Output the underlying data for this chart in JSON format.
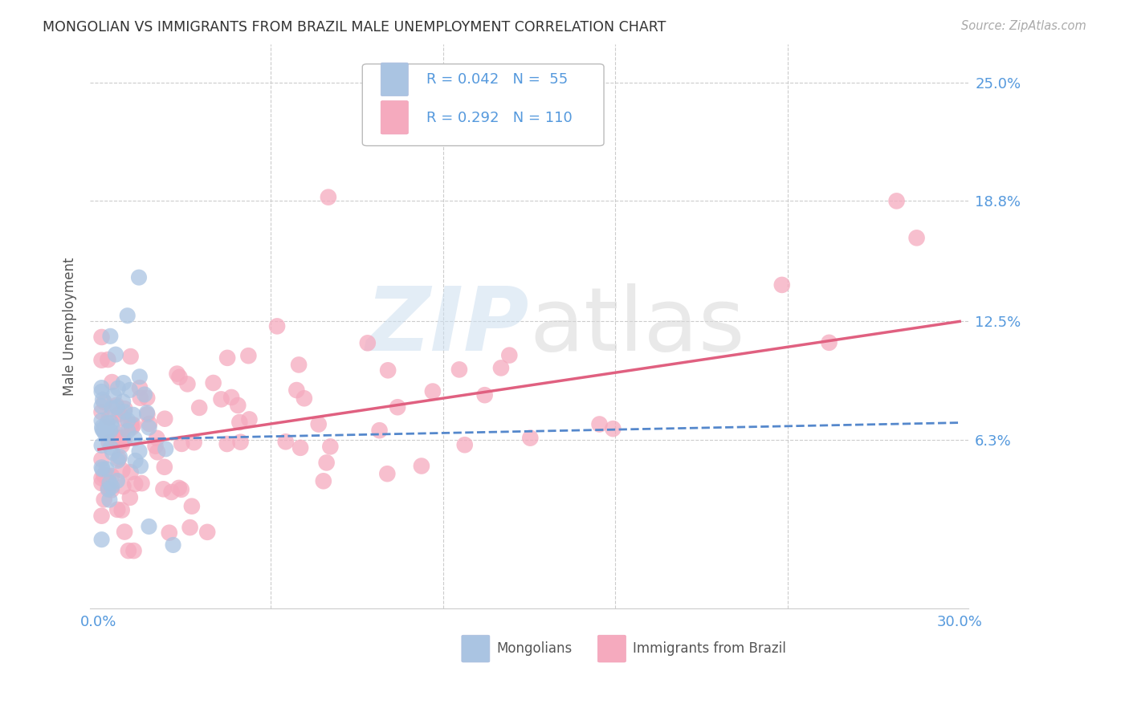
{
  "title": "MONGOLIAN VS IMMIGRANTS FROM BRAZIL MALE UNEMPLOYMENT CORRELATION CHART",
  "source": "Source: ZipAtlas.com",
  "ylabel": "Male Unemployment",
  "xlim": [
    0.0,
    0.3
  ],
  "ylim": [
    -0.025,
    0.27
  ],
  "ytick_vals": [
    0.0,
    0.063,
    0.125,
    0.188,
    0.25
  ],
  "ytick_labels": [
    "",
    "6.3%",
    "12.5%",
    "18.8%",
    "25.0%"
  ],
  "xtick_vals": [
    0.0,
    0.06,
    0.12,
    0.18,
    0.24,
    0.3
  ],
  "xtick_labels": [
    "0.0%",
    "",
    "",
    "",
    "",
    "30.0%"
  ],
  "mongolian_color": "#aac4e2",
  "brazil_color": "#f5aabe",
  "mongolian_line_color": "#5588cc",
  "brazil_line_color": "#e06080",
  "legend_mongolian_R": "0.042",
  "legend_mongolian_N": "55",
  "legend_brazil_R": "0.292",
  "legend_brazil_N": "110",
  "tick_color": "#5599dd",
  "grid_color": "#cccccc",
  "title_color": "#333333",
  "source_color": "#aaaaaa",
  "ylabel_color": "#555555",
  "mongo_line_start_y": 0.063,
  "mongo_line_end_y": 0.072,
  "brazil_line_start_y": 0.058,
  "brazil_line_end_y": 0.125
}
